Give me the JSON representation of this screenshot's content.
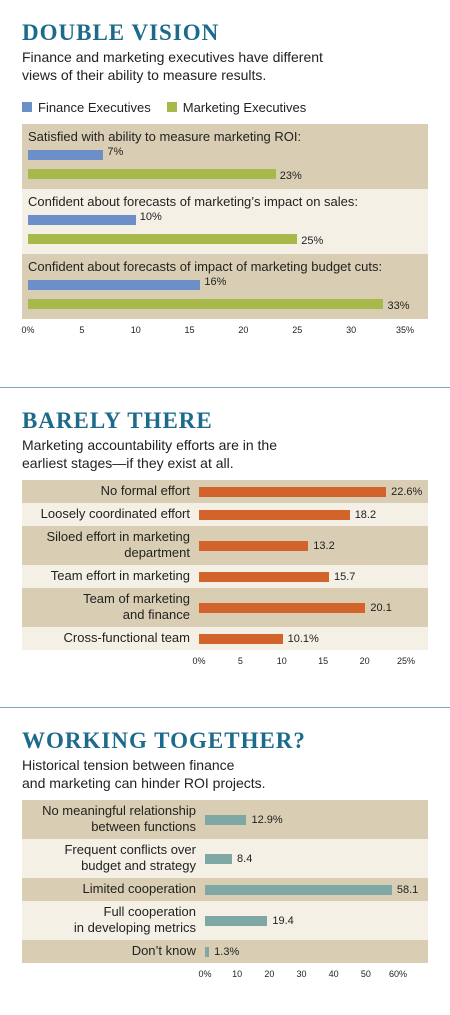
{
  "chart_data": [
    {
      "type": "bar",
      "title": "DOUBLE VISION",
      "subtitle": "Finance and marketing executives have different\nviews of their ability to measure results.",
      "categories": [
        "Satisfied with ability to measure marketing ROI:",
        "Confident about forecasts of marketing’s impact on sales:",
        "Confident about forecasts of impact of marketing budget cuts:"
      ],
      "series": [
        {
          "name": "Finance Executives",
          "color": "#6c8fc9",
          "values": [
            7,
            10,
            16
          ],
          "value_labels": [
            "7%",
            "10%",
            "16%"
          ]
        },
        {
          "name": "Marketing Executives",
          "color": "#a6b94a",
          "values": [
            23,
            25,
            33
          ],
          "value_labels": [
            "23%",
            "25%",
            "33%"
          ]
        }
      ],
      "xlim": [
        0,
        35
      ],
      "xticks": [
        {
          "value": 0,
          "label": "0%"
        },
        5,
        10,
        15,
        20,
        25,
        30,
        {
          "value": 35,
          "label": "35%"
        }
      ]
    },
    {
      "type": "bar",
      "title": "BARELY THERE",
      "subtitle": "Marketing accountability efforts are in the\nearliest stages—if they exist at all.",
      "categories": [
        "No formal effort",
        "Loosely coordinated effort",
        "Siloed effort in marketing\ndepartment",
        "Team effort in marketing",
        "Team of marketing\nand finance",
        "Cross-functional team"
      ],
      "values": [
        22.6,
        18.2,
        13.2,
        15.7,
        20.1,
        10.1
      ],
      "value_labels": [
        "22.6%",
        "18.2",
        "13.2",
        "15.7",
        "20.1",
        "10.1%"
      ],
      "color": "#d2632b",
      "xlim": [
        0,
        25
      ],
      "xticks": [
        {
          "value": 0,
          "label": "0%"
        },
        5,
        10,
        15,
        20,
        {
          "value": 25,
          "label": "25%"
        }
      ]
    },
    {
      "type": "bar",
      "title": "WORKING TOGETHER?",
      "subtitle": "Historical tension between finance\nand marketing can hinder ROI projects.",
      "categories": [
        "No meaningful relationship\nbetween functions",
        "Frequent conflicts over\nbudget and strategy",
        "Limited cooperation",
        "Full cooperation\nin developing metrics",
        "Don’t know"
      ],
      "values": [
        12.9,
        8.4,
        58.1,
        19.4,
        1.3
      ],
      "value_labels": [
        "12.9%",
        "8.4",
        "58.1",
        "19.4",
        "1.3%"
      ],
      "color": "#7fa7a5",
      "xlim": [
        0,
        60
      ],
      "xticks": [
        {
          "value": 0,
          "label": "0%"
        },
        10,
        20,
        30,
        40,
        50,
        {
          "value": 60,
          "label": "60%"
        }
      ]
    }
  ]
}
